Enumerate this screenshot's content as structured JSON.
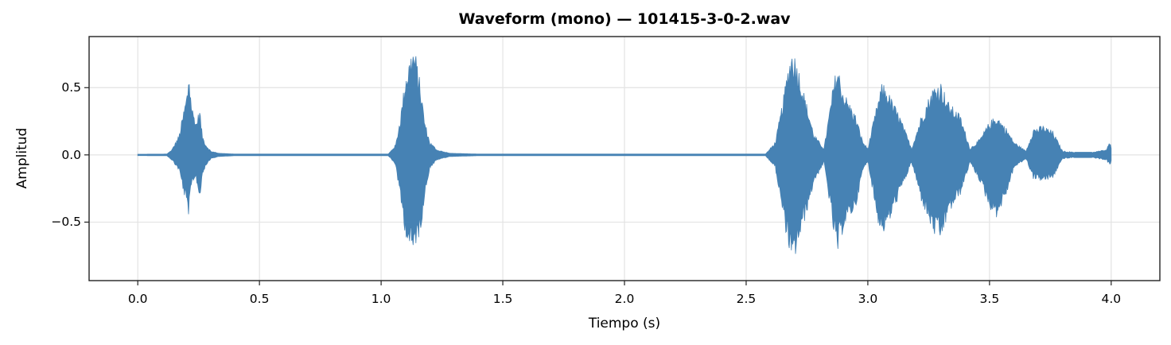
{
  "chart_data": {
    "type": "area",
    "title": "Waveform (mono) — 101415-3-0-2.wav",
    "xlabel": "Tiempo (s)",
    "ylabel": "Amplitud",
    "xlim": [
      -0.2,
      4.2
    ],
    "ylim": [
      -0.935,
      0.88
    ],
    "xticks": [
      0.0,
      0.5,
      1.0,
      1.5,
      2.0,
      2.5,
      3.0,
      3.5,
      4.0
    ],
    "xtick_labels": [
      "0.0",
      "0.5",
      "1.0",
      "1.5",
      "2.0",
      "2.5",
      "3.0",
      "3.5",
      "4.0"
    ],
    "yticks": [
      -0.5,
      0.0,
      0.5
    ],
    "ytick_labels": [
      "−0.5",
      "0.0",
      "0.5"
    ],
    "grid": true,
    "legend": null,
    "color": "#4682b4",
    "duration_s": 4.0,
    "series": [
      {
        "name": "waveform envelope",
        "description": "Approximate min/max amplitude envelope of the mono waveform",
        "t": [
          0.0,
          0.12,
          0.14,
          0.17,
          0.19,
          0.205,
          0.21,
          0.215,
          0.225,
          0.24,
          0.255,
          0.265,
          0.28,
          0.3,
          0.33,
          0.4,
          1.03,
          1.06,
          1.08,
          1.1,
          1.12,
          1.13,
          1.14,
          1.16,
          1.18,
          1.2,
          1.23,
          1.28,
          1.4,
          2.58,
          2.62,
          2.65,
          2.675,
          2.69,
          2.71,
          2.74,
          2.78,
          2.82,
          2.86,
          2.875,
          2.9,
          2.95,
          2.98,
          3.0,
          3.04,
          3.06,
          3.09,
          3.13,
          3.18,
          3.22,
          3.27,
          3.3,
          3.33,
          3.38,
          3.42,
          3.46,
          3.5,
          3.53,
          3.57,
          3.6,
          3.65,
          3.68,
          3.72,
          3.76,
          3.8,
          3.85,
          3.92,
          3.98,
          3.995,
          4.0
        ],
        "upper": [
          0.005,
          0.006,
          0.04,
          0.15,
          0.35,
          0.5,
          0.67,
          0.5,
          0.35,
          0.25,
          0.35,
          0.15,
          0.08,
          0.03,
          0.012,
          0.006,
          0.006,
          0.08,
          0.3,
          0.6,
          0.75,
          0.8,
          0.78,
          0.55,
          0.25,
          0.1,
          0.04,
          0.012,
          0.006,
          0.006,
          0.1,
          0.4,
          0.7,
          0.8,
          0.7,
          0.45,
          0.15,
          0.05,
          0.55,
          0.68,
          0.48,
          0.3,
          0.1,
          0.05,
          0.4,
          0.55,
          0.45,
          0.3,
          0.05,
          0.3,
          0.52,
          0.55,
          0.4,
          0.3,
          0.05,
          0.12,
          0.25,
          0.3,
          0.2,
          0.1,
          0.03,
          0.2,
          0.22,
          0.18,
          0.03,
          0.02,
          0.02,
          0.04,
          0.1,
          0.05
        ],
        "lower": [
          -0.005,
          -0.006,
          -0.04,
          -0.12,
          -0.3,
          -0.42,
          -0.46,
          -0.35,
          -0.2,
          -0.18,
          -0.35,
          -0.15,
          -0.08,
          -0.03,
          -0.012,
          -0.006,
          -0.006,
          -0.08,
          -0.35,
          -0.6,
          -0.72,
          -0.76,
          -0.68,
          -0.6,
          -0.3,
          -0.1,
          -0.04,
          -0.012,
          -0.006,
          -0.006,
          -0.1,
          -0.45,
          -0.7,
          -0.85,
          -0.7,
          -0.5,
          -0.2,
          -0.06,
          -0.6,
          -0.76,
          -0.55,
          -0.4,
          -0.12,
          -0.05,
          -0.5,
          -0.6,
          -0.5,
          -0.3,
          -0.06,
          -0.35,
          -0.6,
          -0.65,
          -0.45,
          -0.3,
          -0.06,
          -0.2,
          -0.4,
          -0.47,
          -0.3,
          -0.1,
          -0.03,
          -0.18,
          -0.2,
          -0.18,
          -0.03,
          -0.02,
          -0.02,
          -0.04,
          -0.08,
          -0.05
        ]
      }
    ]
  }
}
